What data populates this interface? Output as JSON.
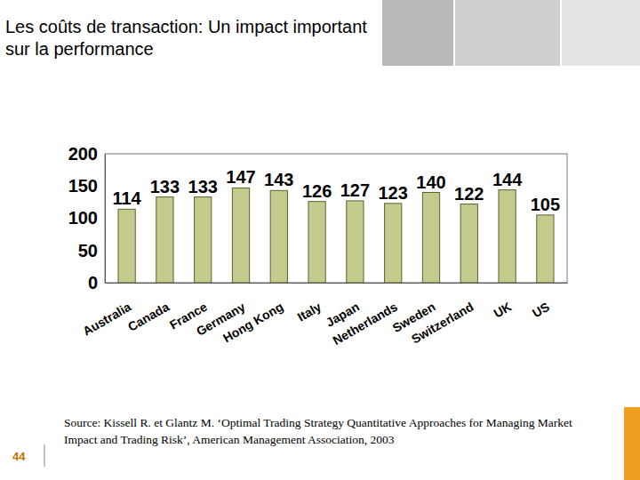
{
  "chart_data": {
    "type": "bar",
    "title": "Les coûts de transaction: Un impact important sur la performance",
    "categories": [
      "Australia",
      "Canada",
      "France",
      "Germany",
      "Hong Kong",
      "Italy",
      "Japan",
      "Netherlands",
      "Sweden",
      "Switzerland",
      "UK",
      "US"
    ],
    "values": [
      114,
      133,
      133,
      147,
      143,
      126,
      127,
      123,
      140,
      122,
      144,
      105
    ],
    "color": "#c5cb8c",
    "ylim": [
      0,
      200
    ],
    "yticks": [
      0,
      50,
      100,
      150,
      200
    ],
    "grid": false,
    "data_labels": true,
    "source": "Source: Kissell R. et Glantz M. ‘Optimal Trading Strategy Quantitative Approaches for Managing Market Impact and Trading Risk’, American Management Association, 2003",
    "page_number": 44
  }
}
